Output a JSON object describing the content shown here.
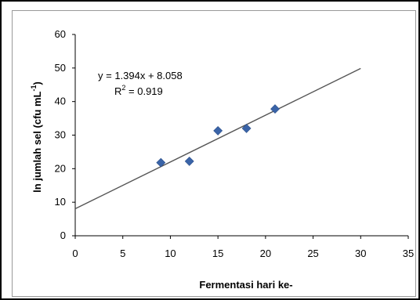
{
  "chart_data": {
    "type": "scatter",
    "title": "",
    "xlabel": "Fermentasi hari ke-",
    "ylabel_main": "ln jumlah sel (cfu mL",
    "ylabel_sup": "-1",
    "ylabel_close": ")",
    "xlim": [
      0,
      35
    ],
    "ylim": [
      0,
      60
    ],
    "xticks": [
      0,
      5,
      10,
      15,
      20,
      25,
      30,
      35
    ],
    "yticks": [
      0,
      10,
      20,
      30,
      40,
      50,
      60
    ],
    "grid": false,
    "legend": "none",
    "series": [
      {
        "marker": "diamond",
        "color": "#3a64a8",
        "x": [
          9,
          12,
          15,
          18,
          21
        ],
        "y": [
          21.8,
          22.2,
          31.3,
          32.0,
          37.8
        ]
      }
    ],
    "trendline": {
      "slope": 1.394,
      "intercept": 8.058,
      "x_range": [
        0,
        30
      ],
      "color": "#555555"
    },
    "annotations": {
      "equation": "y = 1.394x + 8.058",
      "r2_prefix": "R",
      "r2_sup": "2",
      "r2_value": " = 0.919"
    }
  }
}
